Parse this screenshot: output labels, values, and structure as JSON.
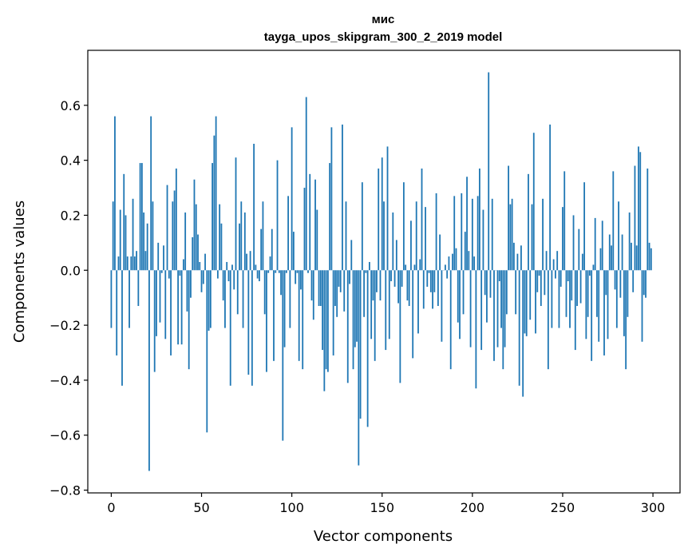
{
  "chart_data": {
    "type": "bar",
    "title": "мис",
    "subtitle": "tayga_upos_skipgram_300_2_2019 model",
    "xlabel": "Vector components",
    "ylabel": "Components values",
    "xlim": [
      -13,
      315
    ],
    "ylim": [
      -0.81,
      0.8
    ],
    "xticks": [
      0,
      50,
      100,
      150,
      200,
      250,
      300
    ],
    "xtick_labels": [
      "0",
      "50",
      "100",
      "150",
      "200",
      "250",
      "300"
    ],
    "yticks": [
      0.6,
      0.4,
      0.2,
      0.0,
      -0.2,
      -0.4,
      -0.6,
      -0.8
    ],
    "ytick_labels": [
      "0.6",
      "0.4",
      "0.2",
      "0.0",
      "−0.2",
      "−0.4",
      "−0.6",
      "−0.8"
    ],
    "color": "#1f77b4",
    "values": [
      -0.21,
      0.25,
      0.56,
      -0.31,
      0.05,
      0.22,
      -0.42,
      0.35,
      0.2,
      0.05,
      -0.21,
      0.05,
      0.26,
      0.05,
      0.07,
      -0.13,
      0.39,
      0.39,
      0.21,
      0.07,
      0.17,
      -0.73,
      0.56,
      0.25,
      -0.37,
      -0.24,
      0.1,
      -0.19,
      -0.01,
      0.09,
      -0.25,
      0.31,
      -0.03,
      -0.31,
      0.25,
      0.29,
      0.37,
      -0.27,
      -0.02,
      -0.27,
      0.04,
      0.21,
      -0.15,
      -0.36,
      -0.1,
      0.12,
      0.33,
      0.24,
      0.13,
      0.03,
      -0.08,
      -0.05,
      0.06,
      -0.59,
      -0.22,
      -0.21,
      0.39,
      0.49,
      0.56,
      -0.03,
      0.24,
      0.17,
      -0.11,
      -0.21,
      0.03,
      -0.04,
      -0.42,
      0.02,
      -0.07,
      0.41,
      -0.16,
      0.17,
      0.25,
      -0.21,
      0.21,
      0.06,
      -0.38,
      0.07,
      -0.42,
      0.46,
      0.02,
      -0.03,
      -0.04,
      0.15,
      0.25,
      -0.16,
      -0.37,
      -0.01,
      0.05,
      0.15,
      -0.33,
      -0.01,
      0.4,
      -0.01,
      -0.09,
      -0.62,
      -0.28,
      -0.01,
      0.27,
      -0.21,
      0.52,
      0.14,
      -0.05,
      -0.01,
      -0.33,
      -0.07,
      -0.36,
      0.3,
      0.63,
      -0.01,
      0.35,
      -0.11,
      -0.18,
      0.33,
      0.22,
      -0.13,
      -0.13,
      -0.29,
      -0.44,
      -0.36,
      -0.37,
      0.39,
      0.52,
      -0.31,
      -0.13,
      -0.17,
      -0.06,
      -0.08,
      0.53,
      -0.15,
      0.25,
      -0.41,
      -0.05,
      0.11,
      -0.36,
      -0.28,
      -0.26,
      -0.71,
      -0.54,
      0.32,
      -0.17,
      -0.01,
      -0.57,
      0.03,
      -0.25,
      -0.11,
      -0.33,
      -0.08,
      0.37,
      -0.11,
      0.41,
      0.25,
      -0.29,
      0.45,
      -0.25,
      -0.04,
      0.21,
      -0.06,
      0.11,
      -0.12,
      -0.41,
      -0.06,
      0.32,
      0.02,
      -0.11,
      -0.13,
      0.18,
      -0.32,
      0.02,
      0.25,
      -0.23,
      0.04,
      0.37,
      -0.14,
      0.23,
      -0.06,
      -0.01,
      -0.08,
      -0.14,
      -0.08,
      0.28,
      -0.13,
      0.13,
      -0.26,
      0.0,
      0.02,
      -0.03,
      0.05,
      -0.36,
      0.06,
      0.27,
      0.08,
      -0.19,
      -0.25,
      0.28,
      -0.16,
      0.14,
      0.34,
      0.07,
      -0.28,
      0.26,
      0.05,
      -0.43,
      0.27,
      0.37,
      -0.29,
      0.22,
      -0.09,
      -0.19,
      0.72,
      -0.1,
      0.26,
      -0.33,
      0.0,
      -0.28,
      -0.04,
      -0.21,
      -0.36,
      -0.28,
      -0.16,
      0.38,
      0.24,
      0.26,
      0.1,
      -0.16,
      0.06,
      -0.42,
      0.09,
      -0.46,
      -0.23,
      -0.24,
      0.35,
      -0.18,
      0.24,
      0.5,
      -0.23,
      -0.08,
      -0.02,
      -0.13,
      0.26,
      -0.09,
      0.07,
      -0.36,
      0.53,
      -0.21,
      0.04,
      -0.03,
      0.07,
      -0.21,
      -0.06,
      0.23,
      0.36,
      -0.17,
      -0.04,
      -0.21,
      -0.11,
      0.2,
      -0.29,
      -0.13,
      0.15,
      -0.12,
      0.06,
      0.32,
      -0.25,
      -0.17,
      -0.02,
      -0.33,
      0.02,
      0.19,
      -0.17,
      -0.26,
      0.08,
      0.18,
      -0.31,
      -0.09,
      -0.25,
      0.13,
      0.09,
      0.36,
      -0.07,
      -0.21,
      0.25,
      -0.1,
      0.13,
      -0.24,
      -0.36,
      -0.17,
      0.21,
      0.1,
      -0.08,
      0.38,
      0.09,
      0.45,
      0.43,
      -0.26,
      -0.09,
      -0.1,
      0.37,
      0.1,
      0.08
    ]
  }
}
